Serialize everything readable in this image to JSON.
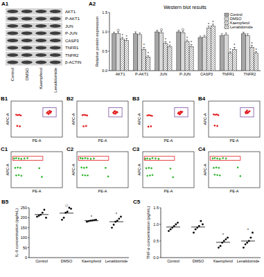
{
  "blot": {
    "panel": "A1",
    "rows": [
      "AKT1",
      "P-AKT1",
      "JUN",
      "P-JUN",
      "CASP3",
      "TNFR1",
      "TNFR2",
      "β-ACTIN"
    ],
    "lanes": [
      "Control",
      "DMSO",
      "Kaempferol",
      "Lenalidomide"
    ]
  },
  "chart_data": [
    {
      "panel": "A2",
      "type": "bar",
      "title": "Western blot results",
      "ylabel": "Relative protein expression",
      "categories": [
        "AKT1",
        "P-AKT1",
        "JUN",
        "P-JUN",
        "CASP3",
        "TNFR1",
        "TNFR2"
      ],
      "series": [
        {
          "name": "Control",
          "color": "#a6a6a6",
          "values": [
            0.95,
            0.95,
            1.0,
            1.0,
            0.85,
            0.9,
            0.95
          ],
          "errors": [
            0.04,
            0.05,
            0.04,
            0.04,
            0.04,
            0.05,
            0.04
          ]
        },
        {
          "name": "DMSO",
          "color": "#d9d9d9",
          "values": [
            0.96,
            0.93,
            0.97,
            0.98,
            0.87,
            0.92,
            0.9
          ],
          "errors": [
            0.04,
            0.04,
            0.05,
            0.04,
            0.04,
            0.05,
            0.05
          ],
          "annotations": [
            "◇",
            null,
            "◇",
            "◇",
            null,
            null,
            null
          ]
        },
        {
          "name": "Kaempferol",
          "color": "#ffffff",
          "values": [
            0.82,
            0.55,
            0.7,
            0.75,
            1.1,
            0.45,
            0.6
          ],
          "errors": [
            0.04,
            0.05,
            0.05,
            0.04,
            0.05,
            0.04,
            0.05
          ],
          "annotations": [
            "*",
            "*",
            "*",
            "*",
            "*",
            "*",
            "*"
          ]
        },
        {
          "name": "Lenalidomide",
          "color": "#ffffff",
          "values": [
            0.78,
            0.35,
            0.62,
            0.62,
            1.15,
            0.55,
            0.45
          ],
          "errors": [
            0.05,
            0.04,
            0.04,
            0.05,
            0.05,
            0.05,
            0.04
          ],
          "annotations": [
            "*",
            "*",
            "*",
            "*",
            "*",
            "*",
            "*"
          ]
        }
      ],
      "ylim": [
        0,
        1.5
      ],
      "yticks": [
        {
          "value": 0,
          "label": "0.0"
        },
        {
          "value": 0.5,
          "label": "0.5"
        },
        {
          "value": 1,
          "label": "1.0"
        },
        {
          "value": 1.5,
          "label": "1.5"
        }
      ],
      "legend": "upper right"
    },
    {
      "panel": "B1",
      "type": "scatter",
      "xlabel": "PE-A",
      "ylabel": "APC-A",
      "color": "#e31a1c",
      "xlim": [
        0,
        1
      ],
      "ylim": [
        0,
        1
      ],
      "tick_labels": false,
      "x": [
        0.7,
        0.72,
        0.74,
        0.76,
        0.78,
        0.73,
        0.75,
        0.77,
        0.1,
        0.13,
        0.16,
        0.19,
        0.12,
        0.17
      ],
      "values": [
        0.67,
        0.7,
        0.66,
        0.69,
        0.71,
        0.64,
        0.73,
        0.68,
        0.62,
        0.61,
        0.62,
        0.6,
        0.31,
        0.3
      ],
      "gate": {
        "x": [
          0.62,
          0.88
        ],
        "y": [
          0.56,
          0.82
        ]
      }
    },
    {
      "panel": "B2",
      "type": "scatter",
      "xlabel": "PE-A",
      "ylabel": "APC-A",
      "color": "#e31a1c",
      "xlim": [
        0,
        1
      ],
      "ylim": [
        0,
        1
      ],
      "tick_labels": false,
      "x": [
        0.71,
        0.73,
        0.75,
        0.77,
        0.79,
        0.72,
        0.74,
        0.76,
        0.11,
        0.14,
        0.17,
        0.2,
        0.13,
        0.18
      ],
      "values": [
        0.68,
        0.71,
        0.65,
        0.7,
        0.69,
        0.66,
        0.72,
        0.67,
        0.61,
        0.62,
        0.61,
        0.6,
        0.3,
        0.31
      ],
      "gate": {
        "x": [
          0.62,
          0.88
        ],
        "y": [
          0.56,
          0.82
        ]
      }
    },
    {
      "panel": "B3",
      "type": "scatter",
      "xlabel": "PE-A",
      "ylabel": "APC-A",
      "color": "#e31a1c",
      "xlim": [
        0,
        1
      ],
      "ylim": [
        0,
        1
      ],
      "tick_labels": false,
      "x": [
        0.69,
        0.71,
        0.73,
        0.75,
        0.77,
        0.72,
        0.74,
        0.7,
        0.09,
        0.12,
        0.15,
        0.18,
        0.11,
        0.16
      ],
      "values": [
        0.66,
        0.69,
        0.65,
        0.68,
        0.7,
        0.63,
        0.71,
        0.67,
        0.6,
        0.61,
        0.6,
        0.59,
        0.29,
        0.3
      ],
      "gate": {
        "x": [
          0.62,
          0.88
        ],
        "y": [
          0.56,
          0.82
        ]
      }
    },
    {
      "panel": "B4",
      "type": "scatter",
      "xlabel": "PE-A",
      "ylabel": "APC-A",
      "color": "#e31a1c",
      "xlim": [
        0,
        1
      ],
      "ylim": [
        0,
        1
      ],
      "tick_labels": false,
      "x": [
        0.72,
        0.74,
        0.76,
        0.78,
        0.8,
        0.73,
        0.75,
        0.77,
        0.1,
        0.13,
        0.16,
        0.19,
        0.12,
        0.17
      ],
      "values": [
        0.69,
        0.71,
        0.67,
        0.7,
        0.72,
        0.66,
        0.74,
        0.68,
        0.63,
        0.62,
        0.63,
        0.61,
        0.32,
        0.31
      ],
      "gate": {
        "x": [
          0.62,
          0.88
        ],
        "y": [
          0.56,
          0.82
        ]
      }
    },
    {
      "panel": "C1",
      "type": "scatter",
      "xlabel": "PE-A",
      "ylabel": "APC-A",
      "color": "#33b633",
      "xlim": [
        0,
        1
      ],
      "ylim": [
        0,
        1
      ],
      "tick_labels": false,
      "x": [
        0.06,
        0.1,
        0.15,
        0.2,
        0.26,
        0.32,
        0.08,
        0.13,
        0.18,
        0.1,
        0.15,
        0.2,
        0.55,
        0.6
      ],
      "values": [
        0.81,
        0.82,
        0.81,
        0.8,
        0.81,
        0.82,
        0.55,
        0.56,
        0.55,
        0.34,
        0.35,
        0.33,
        0.54,
        0.3
      ],
      "gate": {
        "x": [
          0.03,
          0.62
        ],
        "y": [
          0.76,
          0.87
        ]
      }
    },
    {
      "panel": "C2",
      "type": "scatter",
      "xlabel": "PE-A",
      "ylabel": "APC-A",
      "color": "#33b633",
      "xlim": [
        0,
        1
      ],
      "ylim": [
        0,
        1
      ],
      "tick_labels": false,
      "x": [
        0.07,
        0.11,
        0.16,
        0.21,
        0.27,
        0.33,
        0.09,
        0.14,
        0.19,
        0.11,
        0.16,
        0.21,
        0.56,
        0.61
      ],
      "values": [
        0.82,
        0.81,
        0.82,
        0.81,
        0.8,
        0.81,
        0.56,
        0.55,
        0.56,
        0.35,
        0.34,
        0.34,
        0.55,
        0.31
      ],
      "gate": {
        "x": [
          0.03,
          0.62
        ],
        "y": [
          0.76,
          0.87
        ]
      }
    },
    {
      "panel": "C3",
      "type": "scatter",
      "xlabel": "PE-A",
      "ylabel": "APC-A",
      "color": "#33b633",
      "xlim": [
        0,
        1
      ],
      "ylim": [
        0,
        1
      ],
      "tick_labels": false,
      "x": [
        0.05,
        0.09,
        0.14,
        0.19,
        0.25,
        0.31,
        0.07,
        0.12,
        0.17,
        0.09,
        0.14,
        0.19,
        0.54,
        0.59
      ],
      "values": [
        0.8,
        0.81,
        0.8,
        0.82,
        0.81,
        0.8,
        0.54,
        0.55,
        0.54,
        0.33,
        0.34,
        0.35,
        0.53,
        0.29
      ],
      "gate": {
        "x": [
          0.03,
          0.62
        ],
        "y": [
          0.76,
          0.87
        ]
      }
    },
    {
      "panel": "C4",
      "type": "scatter",
      "xlabel": "PE-A",
      "ylabel": "APC-A",
      "color": "#33b633",
      "xlim": [
        0,
        1
      ],
      "ylim": [
        0,
        1
      ],
      "tick_labels": false,
      "x": [
        0.08,
        0.12,
        0.17,
        0.22,
        0.28,
        0.34,
        0.1,
        0.15,
        0.2,
        0.12,
        0.17,
        0.22,
        0.57,
        0.62
      ],
      "values": [
        0.81,
        0.82,
        0.81,
        0.8,
        0.82,
        0.81,
        0.55,
        0.56,
        0.55,
        0.36,
        0.35,
        0.34,
        0.56,
        0.32
      ],
      "gate": {
        "x": [
          0.03,
          0.62
        ],
        "y": [
          0.76,
          0.87
        ]
      }
    },
    {
      "panel": "B5",
      "type": "dot",
      "ylabel": "IL-6 concentration (pg/mL)",
      "color": "#000000",
      "categories": [
        "Control",
        "DMSO",
        "Kaempferol",
        "Lenalidomide"
      ],
      "values": [
        [
          205,
          210,
          215,
          225,
          240,
          200
        ],
        [
          190,
          200,
          225,
          230,
          250,
          245
        ],
        [
          180,
          183,
          185,
          186,
          188,
          190
        ],
        [
          150,
          165,
          180,
          185,
          195,
          205
        ]
      ],
      "means": [
        216,
        223,
        185,
        180
      ],
      "annotations": [
        null,
        "◇",
        "*",
        "*"
      ],
      "ylim": [
        0,
        250
      ],
      "yticks": [
        0,
        50,
        100,
        150,
        200,
        250
      ]
    },
    {
      "panel": "C5",
      "type": "dot",
      "ylabel": "TNF-α concentration (pg/mL)",
      "color": "#000000",
      "categories": [
        "Control",
        "DMSO",
        "Kaempferol",
        "Lenalidomide"
      ],
      "values": [
        [
          0.8,
          0.85,
          0.9,
          0.95,
          1.0,
          1.05
        ],
        [
          0.75,
          0.85,
          0.9,
          0.95,
          1.1,
          1.0
        ],
        [
          0.3,
          0.35,
          0.45,
          0.5,
          0.55,
          0.6
        ],
        [
          0.3,
          0.4,
          0.45,
          0.5,
          0.6,
          0.75
        ]
      ],
      "means": [
        0.92,
        0.92,
        0.46,
        0.5
      ],
      "annotations": [
        null,
        null,
        "*",
        "*"
      ],
      "ylim": [
        0,
        1.5
      ],
      "yticks": [
        {
          "value": 0,
          "label": "0.0"
        },
        {
          "value": 0.5,
          "label": "0.5"
        },
        {
          "value": 1,
          "label": "1.0"
        },
        {
          "value": 1.5,
          "label": "1.5"
        }
      ]
    }
  ]
}
